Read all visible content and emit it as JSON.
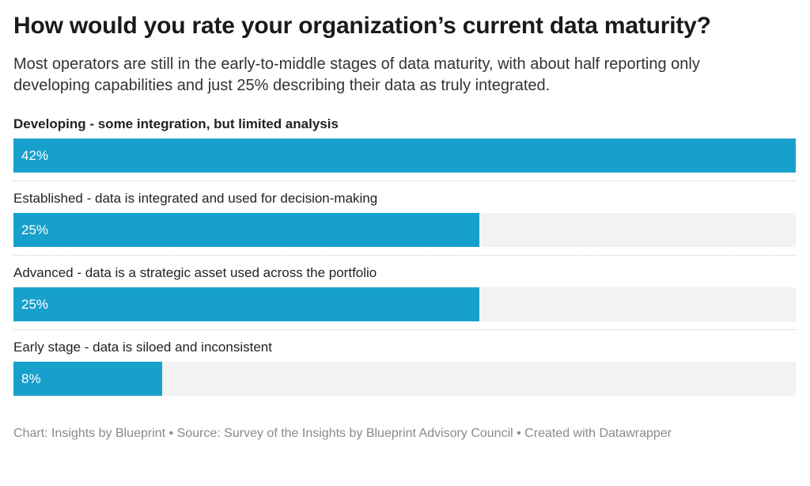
{
  "header": {
    "title": "How would you rate your organization’s current data maturity?",
    "subtitle": "Most operators are still in the early-to-middle stages of data maturity, with about half reporting only developing capabilities and just 25% describing their data as truly integrated."
  },
  "chart_data": {
    "type": "bar",
    "orientation": "horizontal",
    "categories": [
      "Developing - some integration, but limited analysis",
      "Established - data is integrated and used for decision-making",
      "Advanced - data is a strategic asset used across the portfolio",
      "Early stage - data is siloed and inconsistent"
    ],
    "values": [
      42,
      25,
      25,
      8
    ],
    "value_labels": [
      "42%",
      "25%",
      "25%",
      "8%"
    ],
    "max": 42,
    "bold_category_index": 0,
    "grid": false,
    "legend": "none",
    "value_label_position": "inside-start"
  },
  "footer": {
    "text": "Chart: Insights by Blueprint • Source: Survey of the Insights by Blueprint Advisory Council • Created with Datawrapper"
  },
  "colors": {
    "bar_fill": "#18a0cc",
    "bar_track": "#f2f2f2",
    "value_label": "#ffffff",
    "title_text": "#1a1a1a",
    "body_text": "#333333",
    "footer_text": "#8a8a8a",
    "separator": "#c9c9c9",
    "background": "#ffffff"
  }
}
